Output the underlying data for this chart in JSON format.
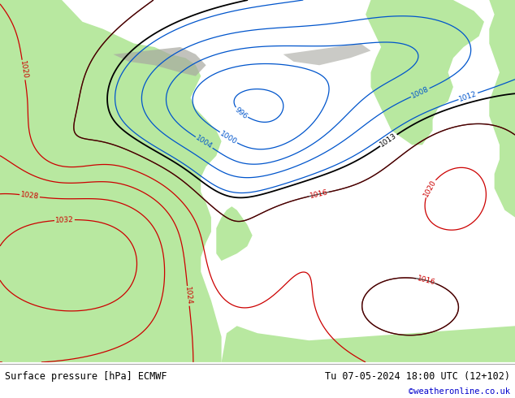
{
  "footer_left": "Surface pressure [hPa] ECMWF",
  "footer_right": "Tu 07-05-2024 18:00 UTC (12+102)",
  "footer_credit": "©weatheronline.co.uk",
  "land_color": "#b8e8a0",
  "sea_color": "#c8c8c8",
  "gray_color": "#a8a8a0",
  "contour_black_color": "#000000",
  "contour_red_color": "#cc0000",
  "contour_blue_color": "#0055cc",
  "footer_bg": "#ffffff",
  "footer_text_color": "#000000",
  "credit_color": "#0000cc",
  "fig_width": 6.34,
  "fig_height": 4.9,
  "dpi": 100
}
